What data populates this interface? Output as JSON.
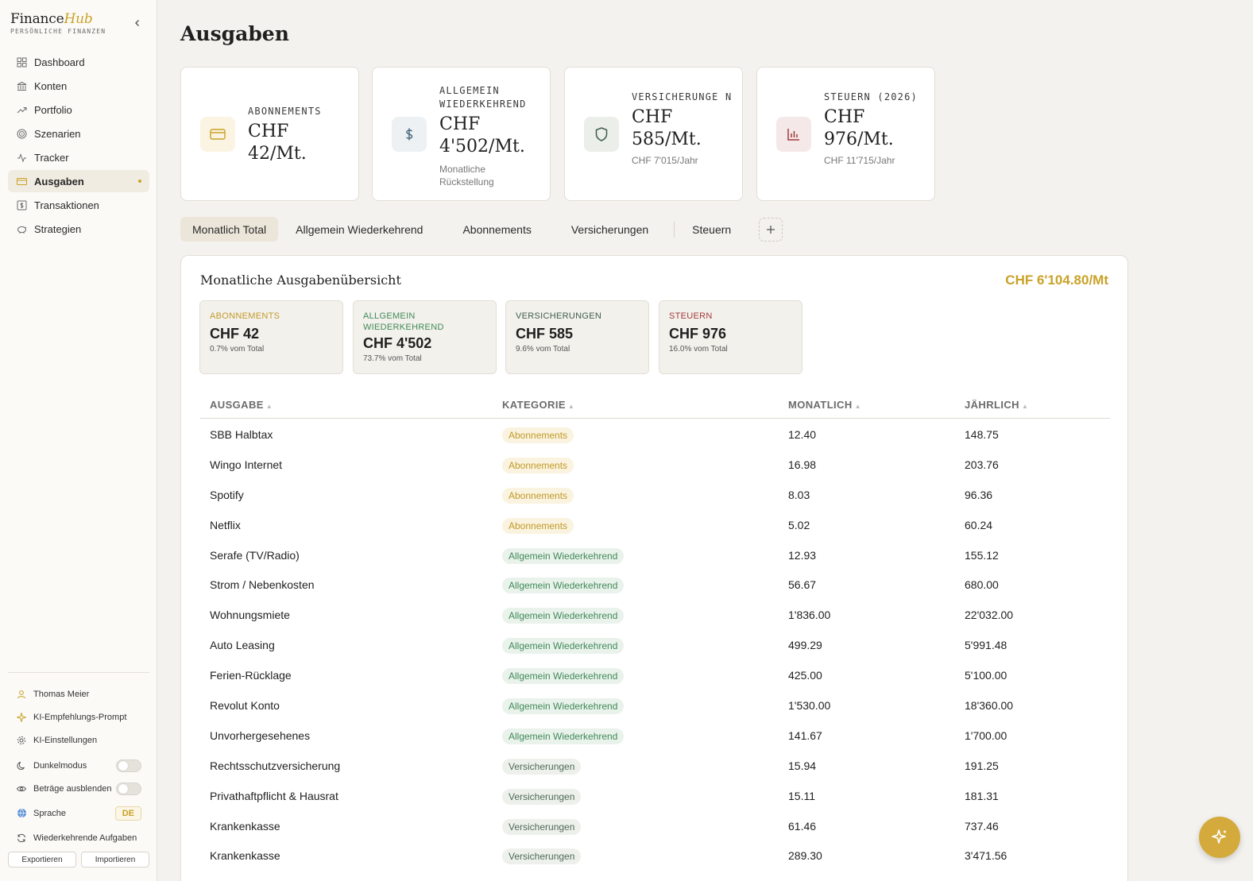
{
  "brand": {
    "name_part1": "Finance",
    "name_part2": "Hub",
    "subtitle": "PERSÖNLICHE FINANZEN"
  },
  "nav": {
    "dashboard": "Dashboard",
    "konten": "Konten",
    "portfolio": "Portfolio",
    "szenarien": "Szenarien",
    "tracker": "Tracker",
    "ausgaben": "Ausgaben",
    "transaktionen": "Transaktionen",
    "strategien": "Strategien"
  },
  "footer": {
    "user": "Thomas Meier",
    "ai_prompt": "KI-Empfehlungs-Prompt",
    "ai_settings": "KI-Einstellungen",
    "dark_mode": "Dunkelmodus",
    "hide_amounts": "Beträge ausblenden",
    "language": "Sprache",
    "language_value": "DE",
    "recurring_tasks": "Wiederkehrende Aufgaben",
    "export": "Exportieren",
    "import": "Importieren"
  },
  "page_title": "Ausgaben",
  "stat_cards": {
    "abo": {
      "label": "Abonnements",
      "value": "CHF 42/Mt.",
      "sub": ""
    },
    "allg": {
      "label": "Allgemein Wiederkehrend",
      "value": "CHF 4'502/Mt.",
      "sub": "Monatliche Rückstellung"
    },
    "vers": {
      "label": "Versicherunge n",
      "value": "CHF 585/Mt.",
      "sub": "CHF 7'015/Jahr"
    },
    "steuern": {
      "label": "Steuern (2026)",
      "value": "CHF 976/Mt.",
      "sub": "CHF 11'715/Jahr"
    }
  },
  "tabs": {
    "total": "Monatlich Total",
    "allg": "Allgemein Wiederkehrend",
    "abo": "Abonnements",
    "vers": "Versicherungen",
    "steuern": "Steuern"
  },
  "panel": {
    "title": "Monatliche Ausgabenübersicht",
    "total": "CHF 6'104.80/Mt",
    "mini": {
      "abo": {
        "label": "Abonnements",
        "value": "CHF 42",
        "pct": "0.7% vom Total"
      },
      "allg": {
        "label": "Allgemein Wiederkehrend",
        "value": "CHF 4'502",
        "pct": "73.7% vom Total"
      },
      "vers": {
        "label": "Versicherungen",
        "value": "CHF 585",
        "pct": "9.6% vom Total"
      },
      "steuern": {
        "label": "Steuern",
        "value": "CHF 976",
        "pct": "16.0% vom Total"
      }
    },
    "columns": {
      "ausgabe": "Ausgabe",
      "kategorie": "Kategorie",
      "monatlich": "Monatlich",
      "jaehrlich": "Jährlich"
    },
    "rows": [
      {
        "name": "SBB Halbtax",
        "category": "Abonnements",
        "monthly": "12.40",
        "yearly": "148.75"
      },
      {
        "name": "Wingo Internet",
        "category": "Abonnements",
        "monthly": "16.98",
        "yearly": "203.76"
      },
      {
        "name": "Spotify",
        "category": "Abonnements",
        "monthly": "8.03",
        "yearly": "96.36"
      },
      {
        "name": "Netflix",
        "category": "Abonnements",
        "monthly": "5.02",
        "yearly": "60.24"
      },
      {
        "name": "Serafe (TV/Radio)",
        "category": "Allgemein Wiederkehrend",
        "monthly": "12.93",
        "yearly": "155.12"
      },
      {
        "name": "Strom / Nebenkosten",
        "category": "Allgemein Wiederkehrend",
        "monthly": "56.67",
        "yearly": "680.00"
      },
      {
        "name": "Wohnungsmiete",
        "category": "Allgemein Wiederkehrend",
        "monthly": "1'836.00",
        "yearly": "22'032.00"
      },
      {
        "name": "Auto Leasing",
        "category": "Allgemein Wiederkehrend",
        "monthly": "499.29",
        "yearly": "5'991.48"
      },
      {
        "name": "Ferien-Rücklage",
        "category": "Allgemein Wiederkehrend",
        "monthly": "425.00",
        "yearly": "5'100.00"
      },
      {
        "name": "Revolut Konto",
        "category": "Allgemein Wiederkehrend",
        "monthly": "1'530.00",
        "yearly": "18'360.00"
      },
      {
        "name": "Unvorhergesehenes",
        "category": "Allgemein Wiederkehrend",
        "monthly": "141.67",
        "yearly": "1'700.00"
      },
      {
        "name": "Rechtsschutzversicherung",
        "category": "Versicherungen",
        "monthly": "15.94",
        "yearly": "191.25"
      },
      {
        "name": "Privathaftpflicht & Hausrat",
        "category": "Versicherungen",
        "monthly": "15.11",
        "yearly": "181.31"
      },
      {
        "name": "Krankenkasse",
        "category": "Versicherungen",
        "monthly": "61.46",
        "yearly": "737.46"
      },
      {
        "name": "Krankenkasse",
        "category": "Versicherungen",
        "monthly": "289.30",
        "yearly": "3'471.56"
      }
    ]
  },
  "colors": {
    "accent": "#c9a227",
    "abo": "#c29a2a",
    "allg": "#3f8a57",
    "vers": "#4c6b55",
    "steuern": "#a23a3a"
  }
}
